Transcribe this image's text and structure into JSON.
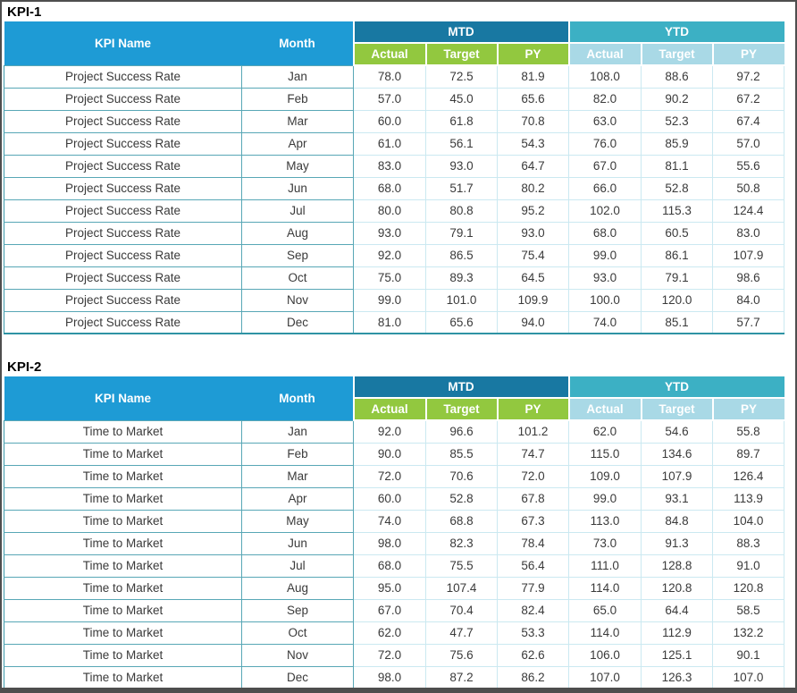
{
  "colors": {
    "header_blue": "#1E9BD5",
    "mtd_band": "#1878A2",
    "ytd_band": "#3CB0C4",
    "mtd_subheader_green": "#92C83F",
    "ytd_subheader_blue": "#A9D9E6",
    "teal_border": "#58A7B6",
    "light_border": "#CBE9F1",
    "table_bottom_border": "#2E93A4",
    "text": "#3A3A3A"
  },
  "tables": [
    {
      "section_title": "KPI-1",
      "kpi_name": "Project Success Rate",
      "headers": {
        "kpi_name": "KPI Name",
        "month": "Month",
        "mtd": "MTD",
        "ytd": "YTD",
        "sub": [
          "Actual",
          "Target",
          "PY"
        ]
      },
      "rows": [
        {
          "month": "Jan",
          "mtd": [
            "78.0",
            "72.5",
            "81.9"
          ],
          "ytd": [
            "108.0",
            "88.6",
            "97.2"
          ]
        },
        {
          "month": "Feb",
          "mtd": [
            "57.0",
            "45.0",
            "65.6"
          ],
          "ytd": [
            "82.0",
            "90.2",
            "67.2"
          ]
        },
        {
          "month": "Mar",
          "mtd": [
            "60.0",
            "61.8",
            "70.8"
          ],
          "ytd": [
            "63.0",
            "52.3",
            "67.4"
          ]
        },
        {
          "month": "Apr",
          "mtd": [
            "61.0",
            "56.1",
            "54.3"
          ],
          "ytd": [
            "76.0",
            "85.9",
            "57.0"
          ]
        },
        {
          "month": "May",
          "mtd": [
            "83.0",
            "93.0",
            "64.7"
          ],
          "ytd": [
            "67.0",
            "81.1",
            "55.6"
          ]
        },
        {
          "month": "Jun",
          "mtd": [
            "68.0",
            "51.7",
            "80.2"
          ],
          "ytd": [
            "66.0",
            "52.8",
            "50.8"
          ]
        },
        {
          "month": "Jul",
          "mtd": [
            "80.0",
            "80.8",
            "95.2"
          ],
          "ytd": [
            "102.0",
            "115.3",
            "124.4"
          ]
        },
        {
          "month": "Aug",
          "mtd": [
            "93.0",
            "79.1",
            "93.0"
          ],
          "ytd": [
            "68.0",
            "60.5",
            "83.0"
          ]
        },
        {
          "month": "Sep",
          "mtd": [
            "92.0",
            "86.5",
            "75.4"
          ],
          "ytd": [
            "99.0",
            "86.1",
            "107.9"
          ]
        },
        {
          "month": "Oct",
          "mtd": [
            "75.0",
            "89.3",
            "64.5"
          ],
          "ytd": [
            "93.0",
            "79.1",
            "98.6"
          ]
        },
        {
          "month": "Nov",
          "mtd": [
            "99.0",
            "101.0",
            "109.9"
          ],
          "ytd": [
            "100.0",
            "120.0",
            "84.0"
          ]
        },
        {
          "month": "Dec",
          "mtd": [
            "81.0",
            "65.6",
            "94.0"
          ],
          "ytd": [
            "74.0",
            "85.1",
            "57.7"
          ]
        }
      ]
    },
    {
      "section_title": "KPI-2",
      "kpi_name": "Time to Market",
      "headers": {
        "kpi_name": "KPI Name",
        "month": "Month",
        "mtd": "MTD",
        "ytd": "YTD",
        "sub": [
          "Actual",
          "Target",
          "PY"
        ]
      },
      "rows": [
        {
          "month": "Jan",
          "mtd": [
            "92.0",
            "96.6",
            "101.2"
          ],
          "ytd": [
            "62.0",
            "54.6",
            "55.8"
          ]
        },
        {
          "month": "Feb",
          "mtd": [
            "90.0",
            "85.5",
            "74.7"
          ],
          "ytd": [
            "115.0",
            "134.6",
            "89.7"
          ]
        },
        {
          "month": "Mar",
          "mtd": [
            "72.0",
            "70.6",
            "72.0"
          ],
          "ytd": [
            "109.0",
            "107.9",
            "126.4"
          ]
        },
        {
          "month": "Apr",
          "mtd": [
            "60.0",
            "52.8",
            "67.8"
          ],
          "ytd": [
            "99.0",
            "93.1",
            "113.9"
          ]
        },
        {
          "month": "May",
          "mtd": [
            "74.0",
            "68.8",
            "67.3"
          ],
          "ytd": [
            "113.0",
            "84.8",
            "104.0"
          ]
        },
        {
          "month": "Jun",
          "mtd": [
            "98.0",
            "82.3",
            "78.4"
          ],
          "ytd": [
            "73.0",
            "91.3",
            "88.3"
          ]
        },
        {
          "month": "Jul",
          "mtd": [
            "68.0",
            "75.5",
            "56.4"
          ],
          "ytd": [
            "111.0",
            "128.8",
            "91.0"
          ]
        },
        {
          "month": "Aug",
          "mtd": [
            "95.0",
            "107.4",
            "77.9"
          ],
          "ytd": [
            "114.0",
            "120.8",
            "120.8"
          ]
        },
        {
          "month": "Sep",
          "mtd": [
            "67.0",
            "70.4",
            "82.4"
          ],
          "ytd": [
            "65.0",
            "64.4",
            "58.5"
          ]
        },
        {
          "month": "Oct",
          "mtd": [
            "62.0",
            "47.7",
            "53.3"
          ],
          "ytd": [
            "114.0",
            "112.9",
            "132.2"
          ]
        },
        {
          "month": "Nov",
          "mtd": [
            "72.0",
            "75.6",
            "62.6"
          ],
          "ytd": [
            "106.0",
            "125.1",
            "90.1"
          ]
        },
        {
          "month": "Dec",
          "mtd": [
            "98.0",
            "87.2",
            "86.2"
          ],
          "ytd": [
            "107.0",
            "126.3",
            "107.0"
          ]
        }
      ]
    }
  ]
}
